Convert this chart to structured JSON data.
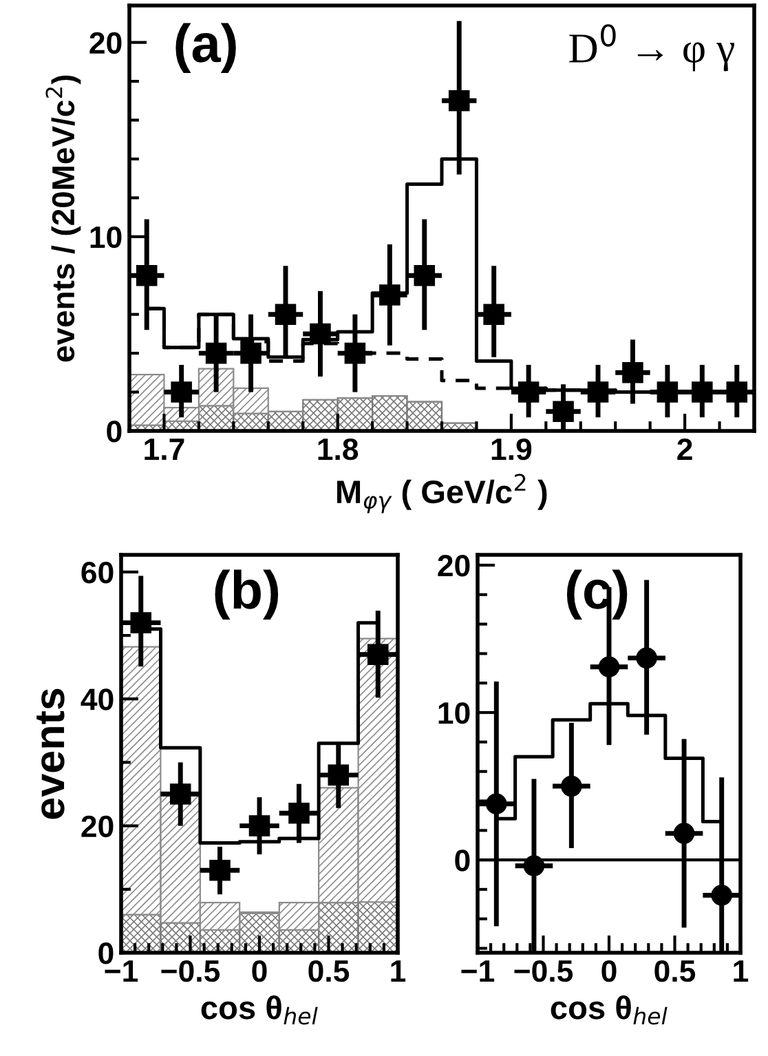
{
  "chart_data": [
    {
      "type": "bar",
      "xlabel": "M$_{φγ}$ ( GeV/c$^{2}$ )",
      "ylabel": "events / (20MeV/c$^{2}$)",
      "annotations": [
        "(a)",
        "D$^{0}$ → φ γ"
      ],
      "stacked": true,
      "x": [
        1.69,
        1.71,
        1.73,
        1.75,
        1.77,
        1.79,
        1.81,
        1.83,
        1.85,
        1.87,
        1.89,
        1.91,
        1.93,
        1.95,
        1.97,
        1.99,
        2.01,
        2.03
      ],
      "xlim": [
        1.68,
        2.04
      ],
      "ylim": [
        0,
        21.9
      ],
      "xticks": [
        1.7,
        1.8,
        1.9,
        2,
        {
          "value": 1.72,
          "label": null
        },
        {
          "value": 1.74,
          "label": null
        },
        {
          "value": 1.76,
          "label": null
        },
        {
          "value": 1.78,
          "label": null
        },
        {
          "value": 1.82,
          "label": null
        },
        {
          "value": 1.84,
          "label": null
        },
        {
          "value": 1.86,
          "label": null
        },
        {
          "value": 1.88,
          "label": null
        },
        {
          "value": 1.92,
          "label": null
        },
        {
          "value": 1.94,
          "label": null
        },
        {
          "value": 1.96,
          "label": null
        },
        {
          "value": 1.98,
          "label": null
        },
        {
          "value": 2.02,
          "label": null
        }
      ],
      "yticks": [
        0,
        10,
        20,
        {
          "value": 2,
          "label": null
        },
        {
          "value": 4,
          "label": null
        },
        {
          "value": 6,
          "label": null
        },
        {
          "value": 8,
          "label": null
        },
        {
          "value": 12,
          "label": null
        },
        {
          "value": 14,
          "label": null
        },
        {
          "value": 16,
          "label": null
        },
        {
          "value": 18,
          "label": null
        }
      ],
      "color": "#7a7a7a",
      "values": [
        0.3,
        0.5,
        1.3,
        0.9,
        1.0,
        1.6,
        1.7,
        1.8,
        1.5,
        0.4,
        0,
        0,
        0,
        0,
        0,
        0,
        0,
        0
      ],
      "series": [
        {
          "color": "#8c8c8c",
          "values": [
            2.6,
            0.7,
            1.9,
            1.3,
            0,
            0,
            0,
            0,
            0,
            0,
            0,
            0,
            0,
            0,
            0,
            0,
            0,
            0
          ]
        },
        {
          "type": "step",
          "color": "#000000",
          "line_style": "dashed",
          "x": [
            1.69,
            1.71,
            1.73,
            1.75,
            1.77,
            1.79,
            1.81,
            1.83,
            1.85,
            1.87,
            1.89,
            1.91,
            1.93,
            1.95,
            1.97,
            1.99,
            2.01,
            2.03
          ],
          "values": [
            6.3,
            4.3,
            6.0,
            4.6,
            3.6,
            4.5,
            4.0,
            4.0,
            3.7,
            2.6,
            2.2,
            2.2,
            2.1,
            2.1,
            2.0,
            2.0,
            2.0,
            2.0
          ]
        },
        {
          "type": "step",
          "color": "#000000",
          "line_style": "solid",
          "x": [
            1.69,
            1.71,
            1.73,
            1.75,
            1.77,
            1.79,
            1.81,
            1.83,
            1.85,
            1.87,
            1.89,
            1.91,
            1.93,
            1.95,
            1.97,
            1.99,
            2.01,
            2.03
          ],
          "values": [
            6.3,
            4.3,
            6.0,
            4.75,
            3.8,
            4.7,
            5.1,
            7.1,
            12.7,
            14.0,
            3.6,
            2.2,
            2.1,
            2.1,
            2.0,
            2.0,
            2.0,
            2.0
          ]
        },
        {
          "type": "scatter",
          "color": "#000000",
          "marker": "square",
          "x": [
            1.69,
            1.71,
            1.73,
            1.75,
            1.77,
            1.79,
            1.81,
            1.83,
            1.85,
            1.87,
            1.89,
            1.91,
            1.93,
            1.95,
            1.97,
            1.99,
            2.01,
            2.03
          ],
          "values": [
            8,
            2,
            4,
            4,
            6,
            5,
            4,
            7,
            8,
            17,
            6,
            2,
            1,
            2,
            3,
            2,
            2,
            2
          ],
          "errors": [
            [
              5.2,
              10.9
            ],
            [
              0.7,
              3.4
            ],
            [
              2,
              6
            ],
            [
              2,
              6
            ],
            [
              3.8,
              8.5
            ],
            [
              2.8,
              7.2
            ],
            [
              2,
              6
            ],
            [
              4.4,
              9.6
            ],
            [
              5.2,
              10.9
            ],
            [
              13.2,
              21.1
            ],
            [
              3.8,
              8.5
            ],
            [
              0.7,
              3.4
            ],
            [
              0,
              2.4
            ],
            [
              0.7,
              3.4
            ],
            [
              1.4,
              4.7
            ],
            [
              0.7,
              3.4
            ],
            [
              0.7,
              3.4
            ],
            [
              0.7,
              3.4
            ]
          ],
          "xerrors": [
            0.01,
            0.01,
            0.01,
            0.01,
            0.01,
            0.01,
            0.01,
            0.01,
            0.01,
            0.01,
            0.01,
            0.01,
            0.01,
            0.01,
            0.01,
            0.01,
            0.01,
            0.01
          ]
        }
      ]
    },
    {
      "type": "bar",
      "xlabel": "cos θ$_{hel}$",
      "ylabel": "events",
      "annotations": [
        "(b)"
      ],
      "stacked": true,
      "x": [
        -0.857,
        -0.571,
        -0.286,
        0,
        0.286,
        0.571,
        0.857
      ],
      "xlim": [
        -1,
        1
      ],
      "ylim": [
        0,
        62.7
      ],
      "xticks": [
        {
          "value": -1,
          "label": "−1"
        },
        {
          "value": -0.5,
          "label": "−0.5"
        },
        0,
        0.5,
        1,
        {
          "value": -0.9,
          "label": null
        },
        {
          "value": -0.8,
          "label": null
        },
        {
          "value": -0.7,
          "label": null
        },
        {
          "value": -0.6,
          "label": null
        },
        {
          "value": -0.4,
          "label": null
        },
        {
          "value": -0.3,
          "label": null
        },
        {
          "value": -0.2,
          "label": null
        },
        {
          "value": -0.1,
          "label": null
        },
        {
          "value": 0.1,
          "label": null
        },
        {
          "value": 0.2,
          "label": null
        },
        {
          "value": 0.3,
          "label": null
        },
        {
          "value": 0.4,
          "label": null
        },
        {
          "value": 0.6,
          "label": null
        },
        {
          "value": 0.7,
          "label": null
        },
        {
          "value": 0.8,
          "label": null
        },
        {
          "value": 0.9,
          "label": null
        }
      ],
      "yticks": [
        0,
        20,
        40,
        60,
        {
          "value": 10,
          "label": null
        },
        {
          "value": 30,
          "label": null
        },
        {
          "value": 50,
          "label": null
        }
      ],
      "color": "#7a7a7a",
      "values": [
        6.0,
        4.7,
        3.6,
        6.2,
        3.6,
        7.9,
        8.0
      ],
      "series": [
        {
          "color": "#8c8c8c",
          "values": [
            42.2,
            20.6,
            4.3,
            0.2,
            4.3,
            18.1,
            41.5
          ]
        },
        {
          "type": "step",
          "color": "#000000",
          "line_style": "solid",
          "x": [
            -0.857,
            -0.571,
            -0.286,
            0,
            0.286,
            0.571,
            0.857
          ],
          "values": [
            51,
            32.3,
            17.3,
            17.5,
            18,
            33,
            52
          ]
        },
        {
          "type": "scatter",
          "color": "#000000",
          "marker": "square",
          "x": [
            -0.857,
            -0.571,
            -0.286,
            0,
            0.286,
            0.571,
            0.857
          ],
          "values": [
            52,
            25,
            13,
            20,
            22,
            28,
            47
          ],
          "errors": [
            [
              45.1,
              59.4
            ],
            [
              20,
              30
            ],
            [
              9.2,
              16.7
            ],
            [
              15.5,
              24.5
            ],
            [
              17.3,
              26.6
            ],
            [
              22.8,
              33.2
            ],
            [
              40.2,
              53.9
            ]
          ],
          "xerrors": [
            0.143,
            0.143,
            0.143,
            0.143,
            0.143,
            0.143,
            0.143
          ]
        }
      ]
    },
    {
      "type": "step",
      "xlabel": "cos θ$_{hel}$",
      "annotations": [
        "(c)"
      ],
      "xlim": [
        -1,
        1
      ],
      "ylim": [
        -6.3,
        20.7
      ],
      "xticks": [
        {
          "value": -1,
          "label": "−1"
        },
        {
          "value": -0.5,
          "label": "−0.5"
        },
        0,
        0.5,
        1,
        {
          "value": -0.9,
          "label": null
        },
        {
          "value": -0.8,
          "label": null
        },
        {
          "value": -0.7,
          "label": null
        },
        {
          "value": -0.6,
          "label": null
        },
        {
          "value": -0.4,
          "label": null
        },
        {
          "value": -0.3,
          "label": null
        },
        {
          "value": -0.2,
          "label": null
        },
        {
          "value": -0.1,
          "label": null
        },
        {
          "value": 0.1,
          "label": null
        },
        {
          "value": 0.2,
          "label": null
        },
        {
          "value": 0.3,
          "label": null
        },
        {
          "value": 0.4,
          "label": null
        },
        {
          "value": 0.6,
          "label": null
        },
        {
          "value": 0.7,
          "label": null
        },
        {
          "value": 0.8,
          "label": null
        },
        {
          "value": 0.9,
          "label": null
        }
      ],
      "yticks": [
        0,
        10,
        20,
        {
          "value": -6,
          "label": null
        },
        {
          "value": -4,
          "label": null
        },
        {
          "value": -2,
          "label": null
        },
        {
          "value": 2,
          "label": null
        },
        {
          "value": 4,
          "label": null
        },
        {
          "value": 6,
          "label": null
        },
        {
          "value": 8,
          "label": null
        },
        {
          "value": 12,
          "label": null
        },
        {
          "value": 14,
          "label": null
        },
        {
          "value": 16,
          "label": null
        },
        {
          "value": 18,
          "label": null
        }
      ],
      "ref_lines": [
        {
          "axis": "y",
          "value": 0,
          "color": "#000000"
        }
      ],
      "series": [
        {
          "color": "#000000",
          "line_style": "solid",
          "x": [
            -0.857,
            -0.571,
            -0.286,
            0,
            0.286,
            0.571,
            0.857
          ],
          "values": [
            2.8,
            7.0,
            9.5,
            10.6,
            9.8,
            6.9,
            2.6
          ]
        },
        {
          "type": "scatter",
          "color": "#000000",
          "marker": "circle",
          "x": [
            -0.857,
            -0.571,
            -0.286,
            0,
            0.286,
            0.571,
            0.857
          ],
          "values": [
            3.8,
            -0.4,
            5.0,
            13.1,
            13.7,
            1.8,
            -2.4
          ],
          "errors": [
            [
              -4.5,
              12.1
            ],
            [
              -6.3,
              5.5
            ],
            [
              0.8,
              9.3
            ],
            [
              7.8,
              18.5
            ],
            [
              8.5,
              19.0
            ],
            [
              -4.6,
              8.2
            ],
            [
              -6.3,
              5.6
            ]
          ],
          "xerrors": [
            0.143,
            0.143,
            0.143,
            0.143,
            0.143,
            0.143,
            0.143
          ]
        }
      ]
    }
  ]
}
